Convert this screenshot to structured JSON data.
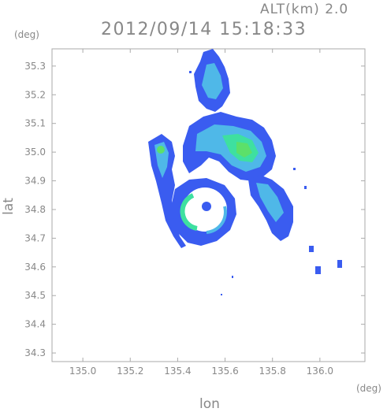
{
  "header": {
    "alt_label": "ALT(km) 2.0",
    "timestamp": "2012/09/14 15:18:33"
  },
  "axes": {
    "y_unit": "(deg)",
    "x_unit": "(deg)",
    "xlabel": "lon",
    "ylabel": "lat"
  },
  "chart_data": {
    "type": "heatmap",
    "title": "",
    "xlabel": "lon",
    "ylabel": "lat",
    "xlim": [
      134.87,
      136.19
    ],
    "ylim": [
      34.27,
      35.36
    ],
    "x_ticks": [
      "135.0",
      "135.2",
      "135.4",
      "135.6",
      "135.8",
      "136.0"
    ],
    "x_tick_values": [
      135.0,
      135.2,
      135.4,
      135.6,
      135.8,
      136.0
    ],
    "y_ticks": [
      "34.3",
      "34.4",
      "34.5",
      "34.6",
      "34.7",
      "34.8",
      "34.9",
      "35.0",
      "35.1",
      "35.2",
      "35.3"
    ],
    "y_tick_values": [
      34.3,
      34.4,
      34.5,
      34.6,
      34.7,
      34.8,
      34.9,
      35.0,
      35.1,
      35.2,
      35.3
    ],
    "colors": {
      "low": "#3a5cf0",
      "mid": "#4fb8e8",
      "high": "#3ee0a0",
      "peak": "#5ce06a",
      "axis": "#888888"
    },
    "cells": [
      {
        "lon": 135.52,
        "lat": 35.3,
        "level": 0.3
      },
      {
        "lon": 135.55,
        "lat": 35.27,
        "level": 0.5
      },
      {
        "lon": 135.5,
        "lat": 35.22,
        "level": 0.4
      },
      {
        "lon": 135.53,
        "lat": 35.18,
        "level": 0.3
      },
      {
        "lon": 135.45,
        "lat": 35.05,
        "level": 0.7
      },
      {
        "lon": 135.6,
        "lat": 35.03,
        "level": 0.6
      },
      {
        "lon": 135.68,
        "lat": 35.0,
        "level": 0.9
      },
      {
        "lon": 135.72,
        "lat": 34.97,
        "level": 0.8
      },
      {
        "lon": 135.63,
        "lat": 34.92,
        "level": 0.5
      },
      {
        "lon": 135.32,
        "lat": 35.02,
        "level": 0.8
      },
      {
        "lon": 135.35,
        "lat": 34.9,
        "level": 0.4
      },
      {
        "lon": 135.4,
        "lat": 34.75,
        "level": 0.3
      },
      {
        "lon": 135.8,
        "lat": 34.8,
        "level": 0.4
      },
      {
        "lon": 135.85,
        "lat": 34.73,
        "level": 0.3
      }
    ]
  }
}
